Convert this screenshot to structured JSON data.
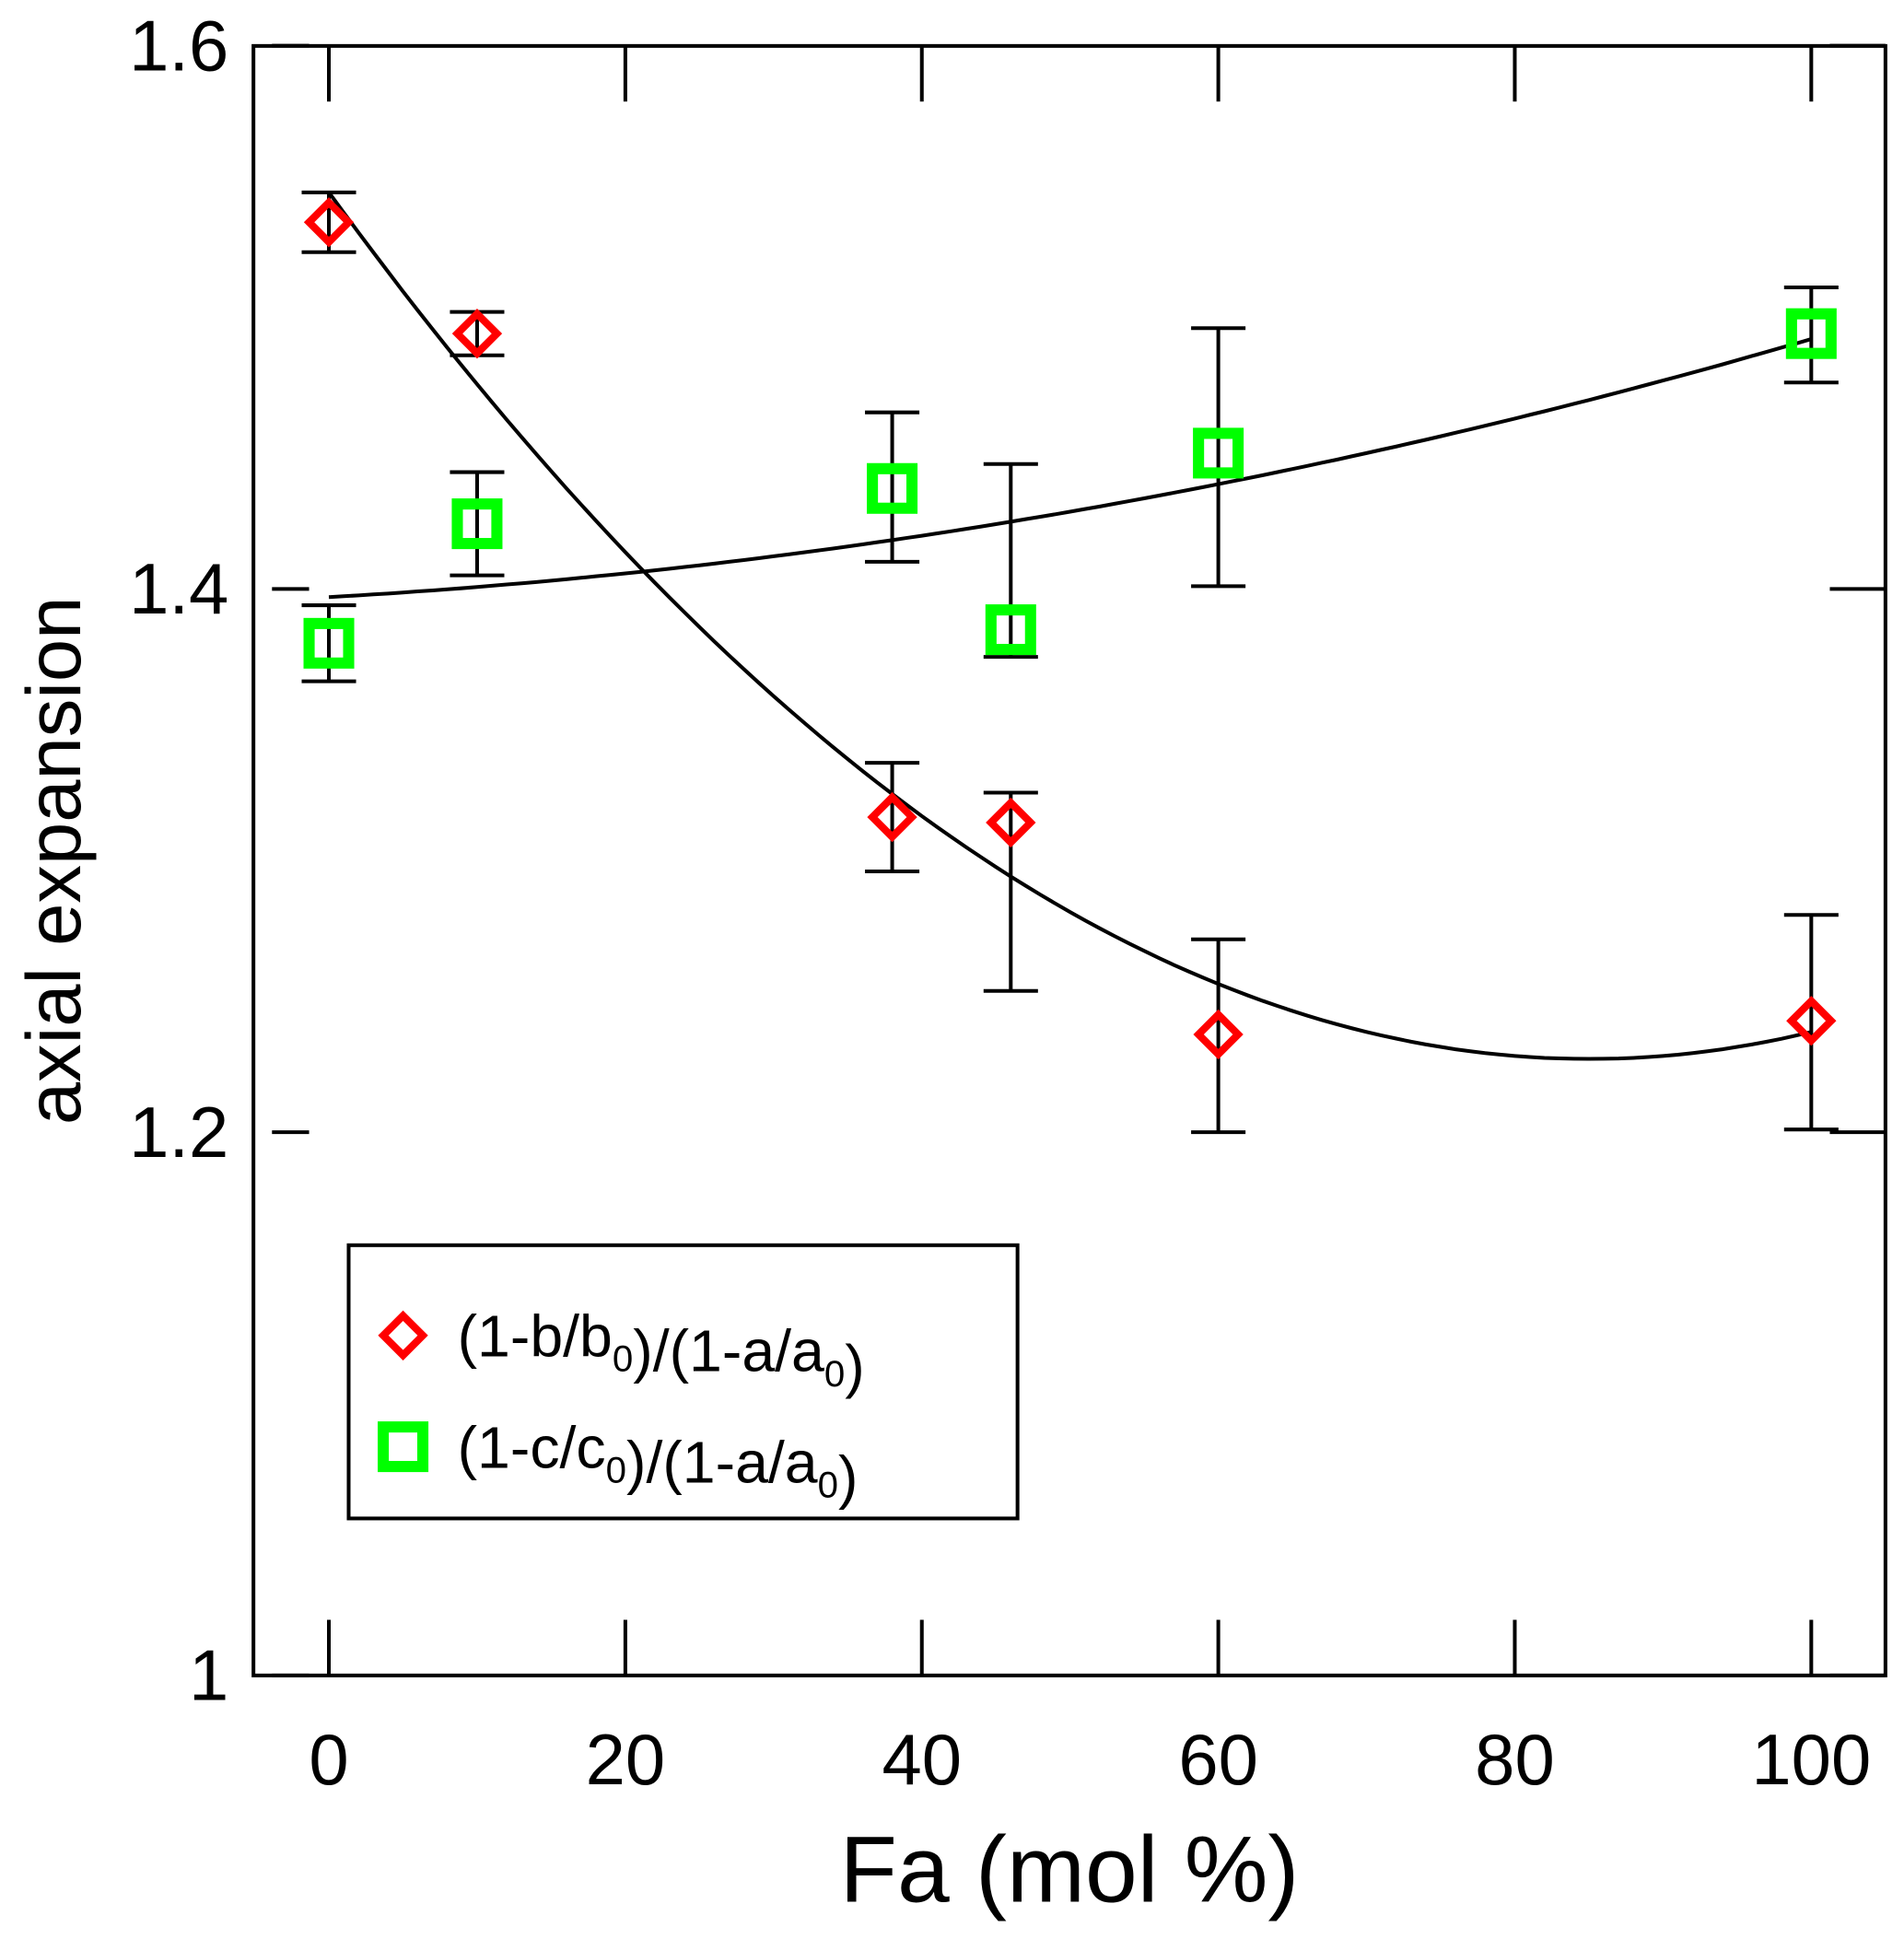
{
  "chart_data": {
    "type": "scatter",
    "title": "",
    "xlabel": "Fa (mol %)",
    "ylabel": "axial expansion",
    "xlim": [
      -5,
      105
    ],
    "ylim": [
      1.0,
      1.6
    ],
    "xticks": [
      0,
      20,
      40,
      60,
      80,
      100
    ],
    "xtick_labels": [
      "0",
      "20",
      "40",
      "60",
      "80",
      "100"
    ],
    "yticks": [
      1.0,
      1.2,
      1.4,
      1.6
    ],
    "ytick_labels": [
      "1",
      "1.2",
      "1.4",
      "1.6"
    ],
    "grid": false,
    "legend_position": "lower-left",
    "series": [
      {
        "name": "(1-b/b0)/(1-a/a0)",
        "marker": "diamond",
        "color": "#ff0000",
        "x": [
          0,
          10,
          38,
          46,
          60,
          100
        ],
        "y": [
          1.535,
          1.494,
          1.316,
          1.314,
          1.236,
          1.241
        ],
        "err_low": [
          1.524,
          1.486,
          1.296,
          1.252,
          1.2,
          1.201
        ],
        "err_high": [
          1.546,
          1.502,
          1.336,
          1.325,
          1.271,
          1.28
        ],
        "fit": {
          "type": "quadratic",
          "coefficients": [
            1.546,
            -0.007506,
            4.415e-05
          ],
          "x_range": [
            0,
            100
          ]
        }
      },
      {
        "name": "(1-c/c0)/(1-a/a0)",
        "marker": "square",
        "color": "#00ff00",
        "x": [
          0,
          10,
          38,
          46,
          60,
          100
        ],
        "y": [
          1.38,
          1.424,
          1.437,
          1.385,
          1.45,
          1.494
        ],
        "err_low": [
          1.366,
          1.405,
          1.41,
          1.375,
          1.401,
          1.476
        ],
        "err_high": [
          1.394,
          1.443,
          1.465,
          1.446,
          1.496,
          1.511
        ],
        "fit": {
          "type": "quadratic",
          "coefficients": [
            1.397,
            0.000308,
            6.42e-06
          ],
          "x_range": [
            0,
            100
          ]
        }
      }
    ]
  }
}
